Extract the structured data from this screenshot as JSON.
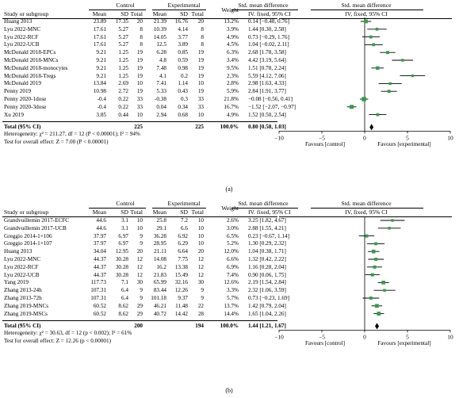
{
  "panels": [
    {
      "headers": {
        "study": "Study or subgroup",
        "control": "Control",
        "experimental": "Experimental",
        "smd_text": "Std. mean difference",
        "smd_plot": "Std. mean difference",
        "mean": "Mean",
        "sd": "SD",
        "total": "Total",
        "weight": "Weight",
        "method_text": "IV. fixed, 95% CI",
        "method_plot": "IV, fixed, 95% CI"
      },
      "rows": [
        {
          "study": "Huang 2013",
          "c_mean": "23.89",
          "c_sd": "17.35",
          "c_total": "20",
          "e_mean": "21.39",
          "e_sd": "16.76",
          "e_total": "20",
          "weight": "13.2%",
          "ci": "0.14 [−0.48, 0.76]"
        },
        {
          "study": "Lyu 2022-MNC",
          "c_mean": "17.61",
          "c_sd": "5.27",
          "c_total": "8",
          "e_mean": "10.39",
          "e_sd": "4.14",
          "e_total": "8",
          "weight": "3.9%",
          "ci": "1.44 [0.30, 2.58]"
        },
        {
          "study": "Lyu 2022-RCF",
          "c_mean": "17.61",
          "c_sd": "5.27",
          "c_total": "8",
          "e_mean": "14.05",
          "e_sd": "3.77",
          "e_total": "8",
          "weight": "4.9%",
          "ci": "0.73 [−0.29, 1.76]"
        },
        {
          "study": "Lyu 2022-UCB",
          "c_mean": "17.61",
          "c_sd": "5.27",
          "c_total": "8",
          "e_mean": "12.5",
          "e_sd": "3.89",
          "e_total": "8",
          "weight": "4.5%",
          "ci": "1.04 [−0.02, 2.11]"
        },
        {
          "study": "McDonald 2018-EPCs",
          "c_mean": "9.21",
          "c_sd": "1.25",
          "c_total": "19",
          "e_mean": "6.28",
          "e_sd": "0.85",
          "e_total": "19",
          "weight": "6.3%",
          "ci": "2.68 [1.78, 3.58]"
        },
        {
          "study": "McDonald 2018-MNCs",
          "c_mean": "9.21",
          "c_sd": "1.25",
          "c_total": "19",
          "e_mean": "4.8",
          "e_sd": "0.59",
          "e_total": "19",
          "weight": "3.4%",
          "ci": "4.42 [3.19, 5.64]"
        },
        {
          "study": "McDonald 2018-monocytes",
          "c_mean": "9.21",
          "c_sd": "1.25",
          "c_total": "19",
          "e_mean": "7.48",
          "e_sd": "0.98",
          "e_total": "19",
          "weight": "9.5%",
          "ci": "1.51 [0.78, 2.24]"
        },
        {
          "study": "McDonald 2018-Tregs",
          "c_mean": "9.21",
          "c_sd": "1.25",
          "c_total": "19",
          "e_mean": "4.1",
          "e_sd": "0.2",
          "e_total": "19",
          "weight": "2.3%",
          "ci": "5.59 [4.12, 7.06]"
        },
        {
          "study": "McDonald 2019",
          "c_mean": "13.84",
          "c_sd": "2.69",
          "c_total": "10",
          "e_mean": "7.41",
          "e_sd": "1.14",
          "e_total": "10",
          "weight": "2.8%",
          "ci": "2.98 [1.63, 4.33]"
        },
        {
          "study": "Penny 2019",
          "c_mean": "10.98",
          "c_sd": "2.72",
          "c_total": "19",
          "e_mean": "5.33",
          "e_sd": "0.43",
          "e_total": "19",
          "weight": "5.9%",
          "ci": "2.84 [1.91, 3.77]"
        },
        {
          "study": "Penny 2020-1dose",
          "c_mean": "-0.4",
          "c_sd": "0.22",
          "c_total": "33",
          "e_mean": "-0.38",
          "e_sd": "0.3",
          "e_total": "33",
          "weight": "21.8%",
          "ci": "−0.08 [−0.56, 0.41]"
        },
        {
          "study": "Penny 2020-3dose",
          "c_mean": "-0.4",
          "c_sd": "0.22",
          "c_total": "33",
          "e_mean": "0.04",
          "e_sd": "0.34",
          "e_total": "33",
          "weight": "16.7%",
          "ci": "−1.52 [−2.07, −0.97]"
        },
        {
          "study": "Xu 2019",
          "c_mean": "3.85",
          "c_sd": "0.44",
          "c_total": "10",
          "e_mean": "2.94",
          "e_sd": "0.68",
          "e_total": "10",
          "weight": "4.9%",
          "ci": "1.52 [0.50, 2.54]"
        }
      ],
      "total": {
        "label": "Total (95% CI)",
        "c_total": "225",
        "e_total": "225",
        "weight": "100.0%",
        "ci": "0.80 [0.58, 1.03]"
      },
      "heterogeneity": "Heterogeneity: χ² = 211.27, df = 12 (P < 0.00001); I² = 94%",
      "overall_effect": "Test for overall effect: Z = 7.00 (P < 0.00001)",
      "favours_left": "Favours [control]",
      "favours_right": "Favours [experimental]",
      "caption": "(a)"
    },
    {
      "headers": {
        "study": "Study or subgroup",
        "control": "Control",
        "experimental": "Experimental",
        "smd_text": "Std. mean difference",
        "smd_plot": "Std. mean difference",
        "mean": "Mean",
        "sd": "SD",
        "total": "Total",
        "weight": "Weight",
        "method_text": "IV. fixed, 95% CI",
        "method_plot": "IV, fixed, 95% CI"
      },
      "rows": [
        {
          "study": "Grandvuillemin 2017-ECFC",
          "c_mean": "44.6",
          "c_sd": "3.1",
          "c_total": "10",
          "e_mean": "25.8",
          "e_sd": "7.2",
          "e_total": "10",
          "weight": "2.6%",
          "ci": "3.25 [1.82, 4.67]"
        },
        {
          "study": "Grandvuillemin 2017-UCB",
          "c_mean": "44.6",
          "c_sd": "3.1",
          "c_total": "10",
          "e_mean": "29.1",
          "e_sd": "6.6",
          "e_total": "10",
          "weight": "3.0%",
          "ci": "2.88 [1.55, 4.21]"
        },
        {
          "study": "Greggio 2014-1×106",
          "c_mean": "37.97",
          "c_sd": "6.97",
          "c_total": "9",
          "e_mean": "36.28",
          "e_sd": "6.92",
          "e_total": "10",
          "weight": "6.5%",
          "ci": "0.23 [−0.67, 1.14]"
        },
        {
          "study": "Greggio 2014-1×107",
          "c_mean": "37.97",
          "c_sd": "6.97",
          "c_total": "9",
          "e_mean": "28.95",
          "e_sd": "6.29",
          "e_total": "10",
          "weight": "5.2%",
          "ci": "1.30 [0.29, 2.32]"
        },
        {
          "study": "Huang 2013",
          "c_mean": "34.04",
          "c_sd": "12.95",
          "c_total": "20",
          "e_mean": "21.11",
          "e_sd": "6.64",
          "e_total": "20",
          "weight": "12.0%",
          "ci": "1.04 [0.38, 1.71]"
        },
        {
          "study": "Lyu 2022-MNC",
          "c_mean": "44.37",
          "c_sd": "30.28",
          "c_total": "12",
          "e_mean": "14.08",
          "e_sd": "7.75",
          "e_total": "12",
          "weight": "6.6%",
          "ci": "1.32 [0.42, 2.22]"
        },
        {
          "study": "Lyu 2022-RCF",
          "c_mean": "44.37",
          "c_sd": "30.28",
          "c_total": "12",
          "e_mean": "16.2",
          "e_sd": "13.38",
          "e_total": "12",
          "weight": "6.9%",
          "ci": "1.16 [0.28, 2.04]"
        },
        {
          "study": "Lyu 2022-UCB",
          "c_mean": "44.37",
          "c_sd": "30.28",
          "c_total": "12",
          "e_mean": "21.83",
          "e_sd": "15.49",
          "e_total": "12",
          "weight": "7.4%",
          "ci": "0.90 [0.06, 1.75]"
        },
        {
          "study": "Yang 2019",
          "c_mean": "117.73",
          "c_sd": "7.1",
          "c_total": "30",
          "e_mean": "65.99",
          "e_sd": "32.16",
          "e_total": "30",
          "weight": "12.6%",
          "ci": "2.19 [1.54, 2.84]"
        },
        {
          "study": "Zhang 2013-24h",
          "c_mean": "107.31",
          "c_sd": "6.4",
          "c_total": "9",
          "e_mean": "83.44",
          "e_sd": "12.26",
          "e_total": "9",
          "weight": "3.3%",
          "ci": "2.32 [1.06, 3.59]"
        },
        {
          "study": "Zhang 2013-72h",
          "c_mean": "107.31",
          "c_sd": "6.4",
          "c_total": "9",
          "e_mean": "101.18",
          "e_sd": "9.37",
          "e_total": "9",
          "weight": "5.7%",
          "ci": "0.73 [−0.23, 1.69]"
        },
        {
          "study": "Zhang 2019-MNCs",
          "c_mean": "60.52",
          "c_sd": "8.62",
          "c_total": "29",
          "e_mean": "46.21",
          "e_sd": "11.48",
          "e_total": "22",
          "weight": "13.7%",
          "ci": "1.42 [0.79, 2.04]"
        },
        {
          "study": "Zhang 2019-MSCs",
          "c_mean": "60.52",
          "c_sd": "8.62",
          "c_total": "29",
          "e_mean": "40.72",
          "e_sd": "14.42",
          "e_total": "28",
          "weight": "14.4%",
          "ci": "1.65 [1.04, 2.26]"
        }
      ],
      "total": {
        "label": "Total (95% CI)",
        "c_total": "200",
        "e_total": "194",
        "weight": "100.0%",
        "ci": "1.44 [1.21, 1.67]"
      },
      "heterogeneity": "Heterogeneity: χ² = 30.63, df = 12 (p < 0.002); I² = 61%",
      "overall_effect": "Test for overall effect: Z = 12.26 (p < 0.00001)",
      "favours_left": "Favours [control]",
      "favours_right": "Favours [experimental]",
      "caption": "(b)"
    }
  ],
  "chart_data": [
    {
      "type": "scatter",
      "xlim": [
        -10,
        10
      ],
      "xticks": [
        "−10",
        "−5",
        "0",
        "5",
        "10"
      ],
      "marker_color": "#3a9a4a",
      "estimates": [
        0.14,
        1.44,
        0.73,
        1.04,
        2.68,
        4.42,
        1.51,
        5.59,
        2.98,
        2.84,
        -0.08,
        -1.52,
        1.52
      ],
      "lower": [
        -0.48,
        0.3,
        -0.29,
        -0.02,
        1.78,
        3.19,
        0.78,
        4.12,
        1.63,
        1.91,
        -0.56,
        -2.07,
        0.5
      ],
      "upper": [
        0.76,
        2.58,
        1.76,
        2.11,
        3.58,
        5.64,
        2.24,
        7.06,
        4.33,
        3.77,
        0.41,
        -0.97,
        2.54
      ],
      "weights": [
        13.2,
        3.9,
        4.9,
        4.5,
        6.3,
        3.4,
        9.5,
        2.3,
        2.8,
        5.9,
        21.8,
        16.7,
        4.9
      ],
      "pooled": {
        "est": 0.8,
        "lower": 0.58,
        "upper": 1.03
      }
    },
    {
      "type": "scatter",
      "xlim": [
        -10,
        10
      ],
      "xticks": [
        "−10",
        "−5",
        "0",
        "5",
        "10"
      ],
      "marker_color": "#3a9a4a",
      "estimates": [
        3.25,
        2.88,
        0.23,
        1.3,
        1.04,
        1.32,
        1.16,
        0.9,
        2.19,
        2.32,
        0.73,
        1.42,
        1.65
      ],
      "lower": [
        1.82,
        1.55,
        -0.67,
        0.29,
        0.38,
        0.42,
        0.28,
        0.06,
        1.54,
        1.06,
        -0.23,
        0.79,
        1.04
      ],
      "upper": [
        4.67,
        4.21,
        1.14,
        2.32,
        1.71,
        2.22,
        2.04,
        1.75,
        2.84,
        3.59,
        1.69,
        2.04,
        2.26
      ],
      "weights": [
        2.6,
        3.0,
        6.5,
        5.2,
        12.0,
        6.6,
        6.9,
        7.4,
        12.6,
        3.3,
        5.7,
        13.7,
        14.4
      ],
      "pooled": {
        "est": 1.44,
        "lower": 1.21,
        "upper": 1.67
      }
    }
  ]
}
